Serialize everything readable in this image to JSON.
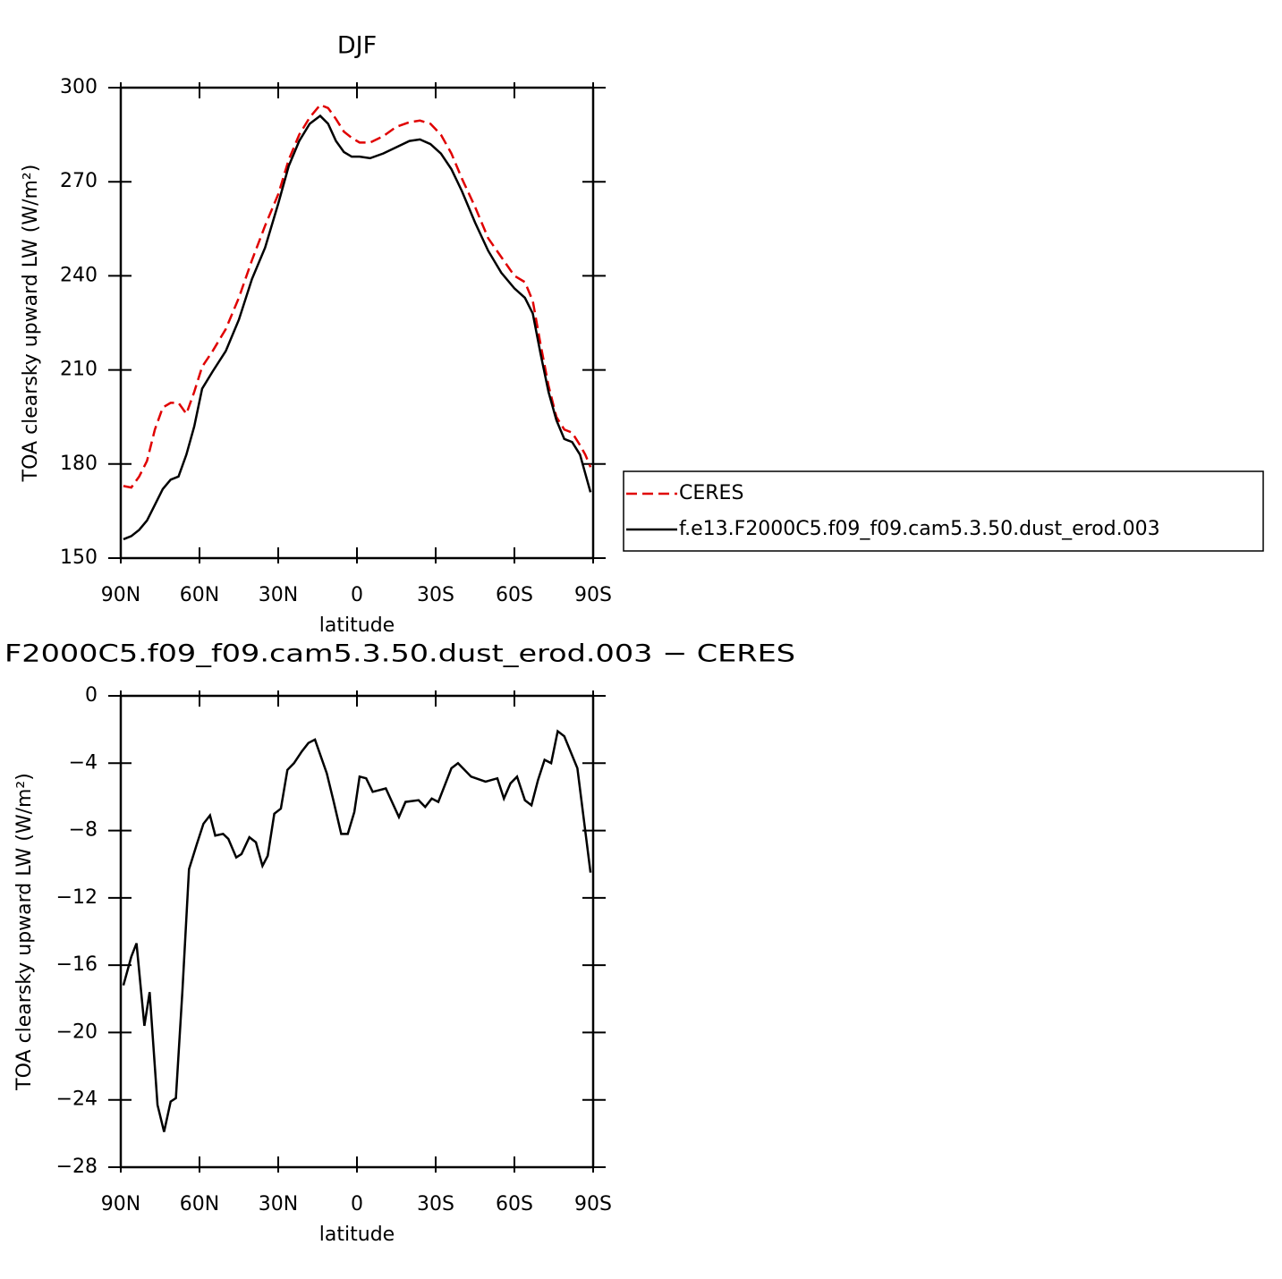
{
  "chart_data": [
    {
      "type": "line",
      "title": "DJF",
      "xlabel": "latitude",
      "ylabel": "TOA clearsky upward LW (W/m²)",
      "x": [
        89,
        86,
        83,
        80,
        77,
        74,
        71,
        68,
        65,
        62,
        59,
        55,
        50,
        45,
        40,
        35,
        30,
        26,
        22,
        18,
        14,
        11,
        8,
        5,
        2,
        -1,
        -5,
        -10,
        -15,
        -20,
        -24,
        -28,
        -32,
        -36,
        -40,
        -45,
        -50,
        -55,
        -60,
        -64,
        -67,
        -70,
        -73,
        -76,
        -79,
        -82,
        -85,
        -87,
        -89
      ],
      "series": [
        {
          "name": "CERES",
          "color": "#e00000",
          "linestyle": "dashed",
          "values": [
            173,
            172.5,
            176,
            181,
            191,
            198,
            199.5,
            199.5,
            196,
            203,
            211,
            216,
            223,
            233,
            245,
            256,
            266,
            277,
            285,
            290.5,
            294.5,
            293.5,
            290,
            286,
            284,
            282.5,
            282.5,
            284.5,
            287.5,
            289,
            289.5,
            288.5,
            285,
            279,
            271,
            262,
            252,
            246,
            240,
            238,
            232,
            218,
            205,
            195,
            191,
            190,
            186,
            183,
            179
          ]
        },
        {
          "name": "f.e13.F2000C5.f09_f09.cam5.3.50.dust_erod.003",
          "color": "#000000",
          "linestyle": "solid",
          "values": [
            156,
            157,
            159,
            162,
            167,
            172,
            175,
            176,
            183,
            192,
            204,
            209.5,
            216,
            226,
            239,
            249,
            263,
            275,
            283,
            288.5,
            291,
            288.5,
            283,
            279.5,
            278,
            278,
            277.5,
            279,
            281,
            283,
            283.5,
            282,
            279,
            274,
            267,
            257,
            248,
            241,
            236,
            233,
            228,
            215,
            203,
            194,
            188,
            187,
            183,
            177,
            171
          ]
        }
      ],
      "xlim": [
        90,
        -90
      ],
      "xticks": [
        {
          "value": 90,
          "label": "90N"
        },
        {
          "value": 60,
          "label": "60N"
        },
        {
          "value": 30,
          "label": "30N"
        },
        0,
        {
          "value": -30,
          "label": "30S"
        },
        {
          "value": -60,
          "label": "60S"
        },
        {
          "value": -90,
          "label": "90S"
        }
      ],
      "ylim": [
        150,
        300
      ],
      "yticks": [
        150,
        180,
        210,
        240,
        270,
        300
      ],
      "legend": "right"
    },
    {
      "type": "line",
      "title": "F2000C5.f09_f09.cam5.3.50.dust_erod.003 − CERES",
      "xlabel": "latitude",
      "ylabel": "TOA clearsky upward LW (W/m²)",
      "x": [
        89,
        86,
        84,
        81,
        79,
        76,
        73.5,
        71,
        69,
        66.5,
        64,
        61,
        58.5,
        56,
        54,
        51,
        49,
        46,
        44,
        41,
        38.5,
        36,
        34,
        31.5,
        29,
        26.5,
        24,
        21,
        18.5,
        16,
        11.5,
        9,
        6,
        3.5,
        1,
        -1,
        -3.5,
        -6,
        -8.5,
        -11,
        -16,
        -18.5,
        -23.5,
        -26,
        -28.5,
        -31,
        -36,
        -38.5,
        -43.5,
        -49,
        -53.5,
        -56,
        -58.5,
        -61,
        -64,
        -66.5,
        -69,
        -71.5,
        -74,
        -76.5,
        -79,
        -84,
        -89
      ],
      "series": [
        {
          "name": null,
          "color": "#000000",
          "linestyle": "solid",
          "values": [
            -17.2,
            -15.5,
            -14.7,
            -19.6,
            -17.6,
            -24.3,
            -25.9,
            -24.1,
            -23.9,
            -17.5,
            -10.3,
            -8.8,
            -7.6,
            -7.1,
            -8.3,
            -8.2,
            -8.5,
            -9.6,
            -9.4,
            -8.4,
            -8.7,
            -10.1,
            -9.5,
            -7,
            -6.7,
            -4.4,
            -4,
            -3.3,
            -2.8,
            -2.6,
            -4.6,
            -6.2,
            -8.2,
            -8.2,
            -6.9,
            -4.8,
            -4.9,
            -5.7,
            -5.6,
            -5.5,
            -7.2,
            -6.3,
            -6.2,
            -6.6,
            -6.1,
            -6.3,
            -4.3,
            -4,
            -4.8,
            -5.1,
            -4.9,
            -6.1,
            -5.2,
            -4.8,
            -6.2,
            -6.5,
            -5,
            -3.8,
            -4,
            -2.1,
            -2.4,
            -4.3,
            -10.5
          ]
        }
      ],
      "xlim": [
        90,
        -90
      ],
      "xticks": [
        {
          "value": 90,
          "label": "90N"
        },
        {
          "value": 60,
          "label": "60N"
        },
        {
          "value": 30,
          "label": "30N"
        },
        0,
        {
          "value": -30,
          "label": "30S"
        },
        {
          "value": -60,
          "label": "60S"
        },
        {
          "value": -90,
          "label": "90S"
        }
      ],
      "ylim": [
        -28,
        0
      ],
      "yticks": [
        {
          "value": -28,
          "label": "−28"
        },
        {
          "value": -24,
          "label": "−24"
        },
        {
          "value": -20,
          "label": "−20"
        },
        {
          "value": -16,
          "label": "−16"
        },
        {
          "value": -12,
          "label": "−12"
        },
        {
          "value": -8,
          "label": "−8"
        },
        {
          "value": -4,
          "label": "−4"
        },
        0
      ]
    }
  ]
}
